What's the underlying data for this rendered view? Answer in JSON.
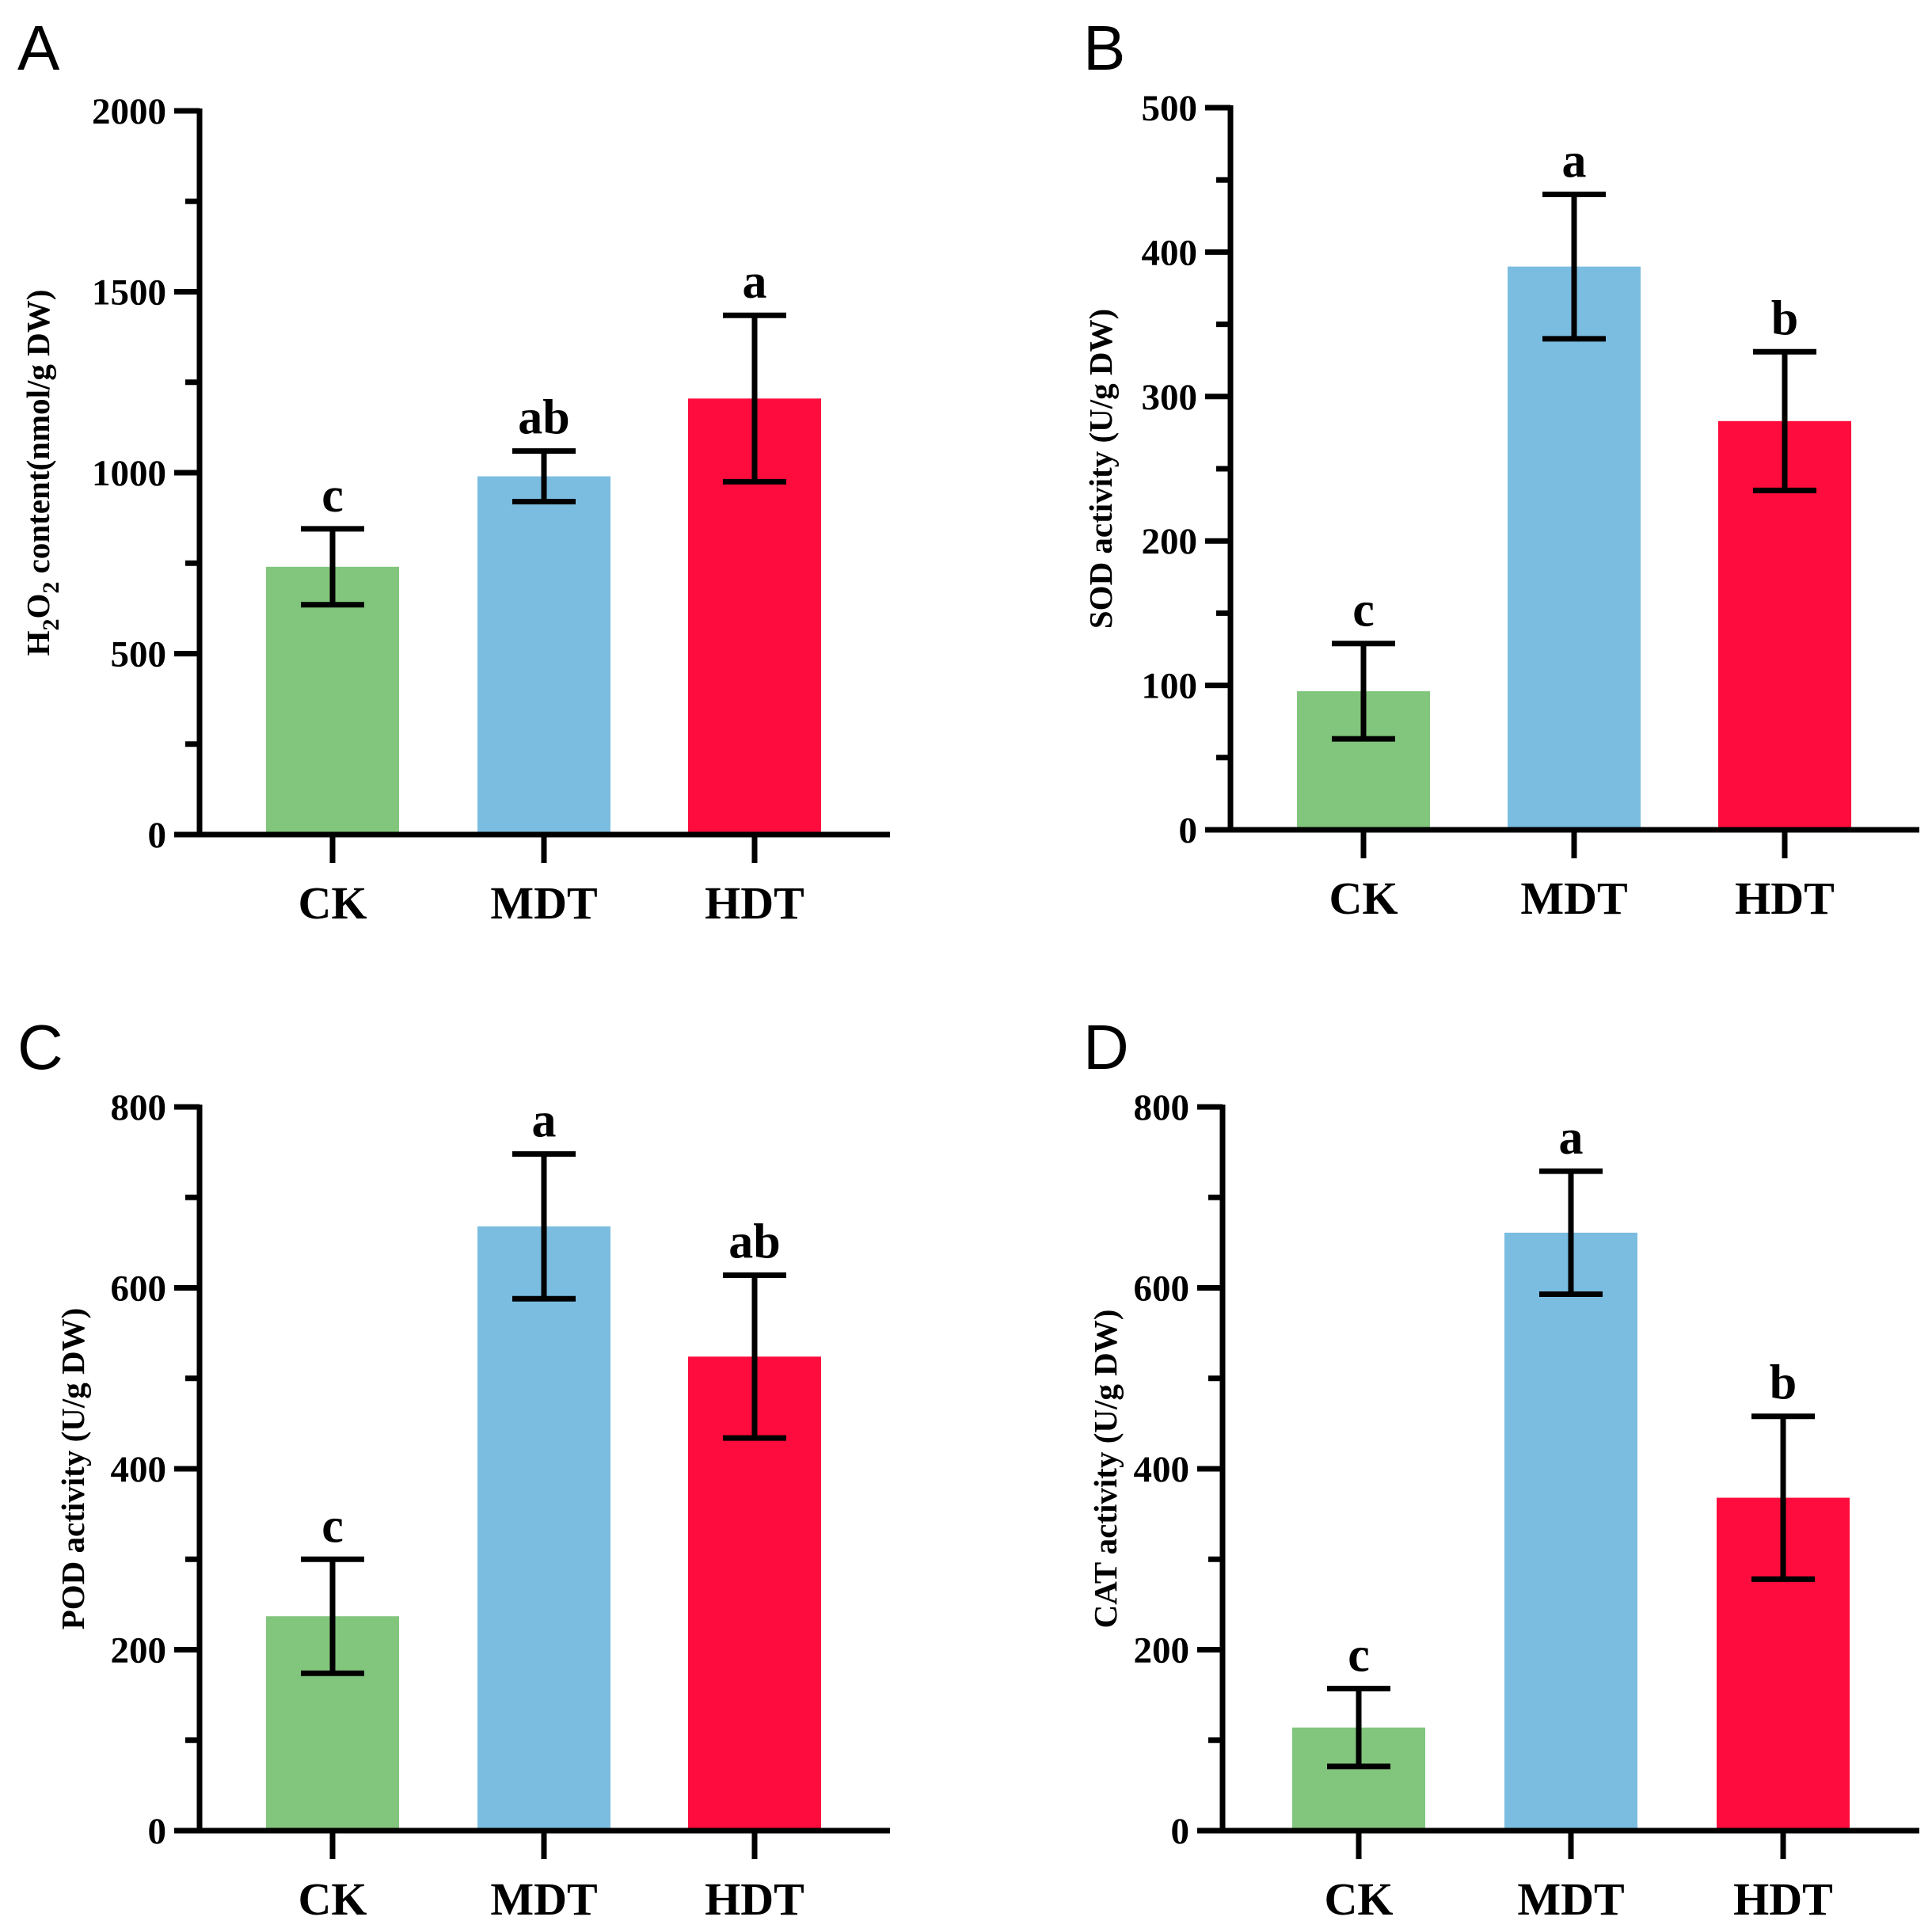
{
  "colors": {
    "CK": "#82c57c",
    "MDT": "#7bbde0",
    "HDT": "#fe0c3d",
    "axis": "#000000"
  },
  "chart_data": [
    {
      "panel": "A",
      "type": "bar",
      "categories": [
        "CK",
        "MDT",
        "HDT"
      ],
      "values": [
        740,
        990,
        1205
      ],
      "errors": [
        105,
        70,
        230
      ],
      "significance": [
        "c",
        "ab",
        "a"
      ],
      "ylabel_main": "H",
      "ylabel_sub1": "2",
      "ylabel_mid": "O",
      "ylabel_sub2": "2",
      "ylabel_rest": " content(nmol/g DW)",
      "ylim": [
        0,
        2000
      ],
      "yticks": [
        0,
        500,
        1000,
        1500,
        2000
      ],
      "yminor": [
        250,
        750,
        1250,
        1750
      ],
      "legend": "none",
      "grid": false
    },
    {
      "panel": "B",
      "type": "bar",
      "categories": [
        "CK",
        "MDT",
        "HDT"
      ],
      "values": [
        96,
        390,
        283
      ],
      "errors": [
        33,
        50,
        48
      ],
      "significance": [
        "c",
        "a",
        "b"
      ],
      "ylabel": "SOD activity (U/g DW)",
      "ylim": [
        0,
        500
      ],
      "yticks": [
        0,
        100,
        200,
        300,
        400,
        500
      ],
      "yminor": [
        50,
        150,
        250,
        350,
        450
      ],
      "legend": "none",
      "grid": false
    },
    {
      "panel": "C",
      "type": "bar",
      "categories": [
        "CK",
        "MDT",
        "HDT"
      ],
      "values": [
        237,
        668,
        524
      ],
      "errors": [
        63,
        80,
        90
      ],
      "significance": [
        "c",
        "a",
        "ab"
      ],
      "ylabel": "POD activity (U/g DW)",
      "ylim": [
        0,
        800
      ],
      "yticks": [
        0,
        200,
        400,
        600,
        800
      ],
      "yminor": [
        100,
        300,
        500,
        700
      ],
      "legend": "none",
      "grid": false
    },
    {
      "panel": "D",
      "type": "bar",
      "categories": [
        "CK",
        "MDT",
        "HDT"
      ],
      "values": [
        114,
        661,
        368
      ],
      "errors": [
        43,
        68,
        90
      ],
      "significance": [
        "c",
        "a",
        "b"
      ],
      "ylabel": "CAT activity (U/g DW)",
      "ylim": [
        0,
        800
      ],
      "yticks": [
        0,
        200,
        400,
        600,
        800
      ],
      "yminor": [
        100,
        300,
        500,
        700
      ],
      "legend": "none",
      "grid": false
    }
  ]
}
